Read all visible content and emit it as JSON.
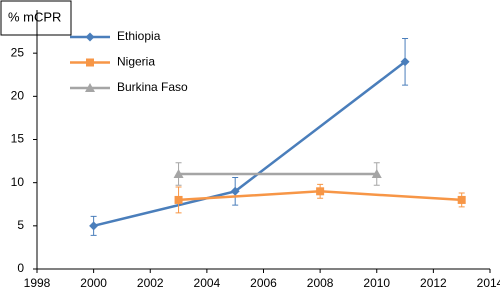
{
  "chart_data": {
    "type": "line",
    "y_label": "% mCPR",
    "series": [
      {
        "name": "Ethiopia",
        "color": "#4a7ebb",
        "marker": "diamond",
        "x": [
          2000,
          2005,
          2011
        ],
        "values": [
          5,
          9,
          24
        ],
        "errors": [
          1.1,
          1.6,
          2.7
        ]
      },
      {
        "name": "Nigeria",
        "color": "#f79646",
        "marker": "square",
        "x": [
          2003,
          2008,
          2013
        ],
        "values": [
          8,
          9,
          8
        ],
        "errors": [
          1.5,
          0.8,
          0.8
        ]
      },
      {
        "name": "Burkina Faso",
        "color": "#a5a5a5",
        "marker": "triangle",
        "x": [
          2003,
          2010
        ],
        "values": [
          11,
          11
        ],
        "errors": [
          1.3,
          1.3
        ]
      }
    ],
    "xlim": [
      1998,
      2014
    ],
    "xticks": [
      1998,
      2000,
      2002,
      2004,
      2006,
      2008,
      2010,
      2012,
      2014
    ],
    "ylim": [
      0,
      30
    ],
    "yticks": [
      0,
      5,
      10,
      15,
      20,
      25
    ],
    "grid": false,
    "legend": "upper left"
  }
}
